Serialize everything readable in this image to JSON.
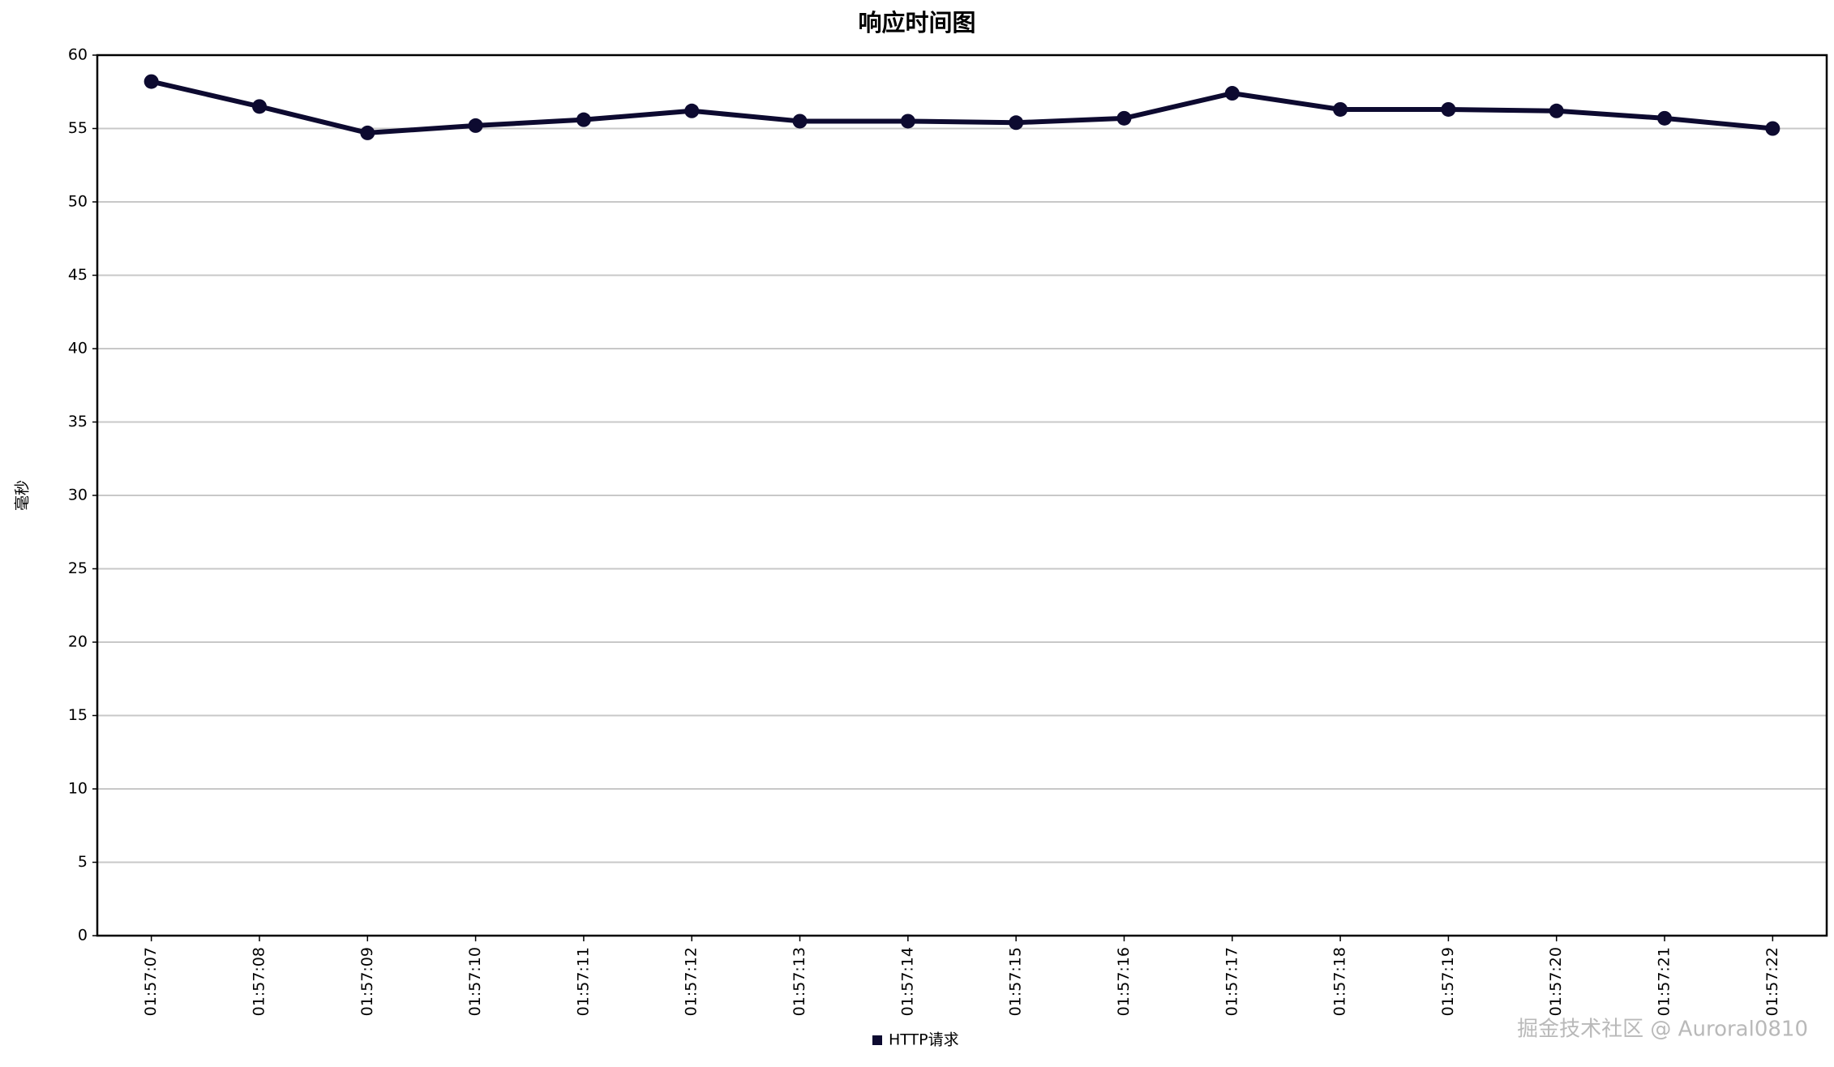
{
  "chart_data": {
    "type": "line",
    "title": "响应时间图",
    "y_label": "毫秒",
    "categories": [
      "01:57:07",
      "01:57:08",
      "01:57:09",
      "01:57:10",
      "01:57:11",
      "01:57:12",
      "01:57:13",
      "01:57:14",
      "01:57:15",
      "01:57:16",
      "01:57:17",
      "01:57:18",
      "01:57:19",
      "01:57:20",
      "01:57:21",
      "01:57:22"
    ],
    "series": [
      {
        "name": "HTTP请求",
        "color": "#0d0a30",
        "values": [
          58.2,
          56.5,
          54.7,
          55.2,
          55.6,
          56.2,
          55.5,
          55.5,
          55.4,
          55.7,
          57.4,
          56.3,
          56.3,
          56.2,
          55.7,
          55.0
        ]
      }
    ],
    "ylim": [
      0,
      60
    ],
    "yticks": [
      0,
      5,
      10,
      15,
      20,
      25,
      30,
      35,
      40,
      45,
      50,
      55,
      60
    ],
    "grid": true,
    "legend": "bottom",
    "watermark": "掘金技术社区 @ Auroral0810"
  }
}
